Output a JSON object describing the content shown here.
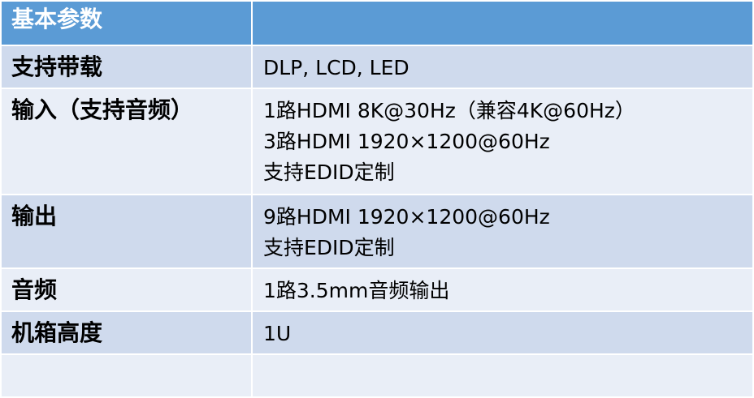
{
  "header": {
    "title": "基本参数",
    "right": ""
  },
  "rows": [
    {
      "label": "支持带载",
      "lines": [
        "DLP, LCD, LED"
      ]
    },
    {
      "label": "输入（支持音频）",
      "lines": [
        "1路HDMI 8K@30Hz（兼容4K@60Hz）",
        "3路HDMI 1920×1200@60Hz",
        "支持EDID定制"
      ]
    },
    {
      "label": "输出",
      "lines": [
        "9路HDMI 1920×1200@60Hz",
        "支持EDID定制"
      ]
    },
    {
      "label": "音频",
      "lines": [
        "1路3.5mm音频输出"
      ]
    },
    {
      "label": "机箱高度",
      "lines": [
        "1U"
      ]
    },
    {
      "label": "",
      "lines": [
        ""
      ]
    }
  ],
  "colors": {
    "header": "#5b9bd5",
    "row_dark": "#cfdaed",
    "row_light": "#e9eef7"
  }
}
